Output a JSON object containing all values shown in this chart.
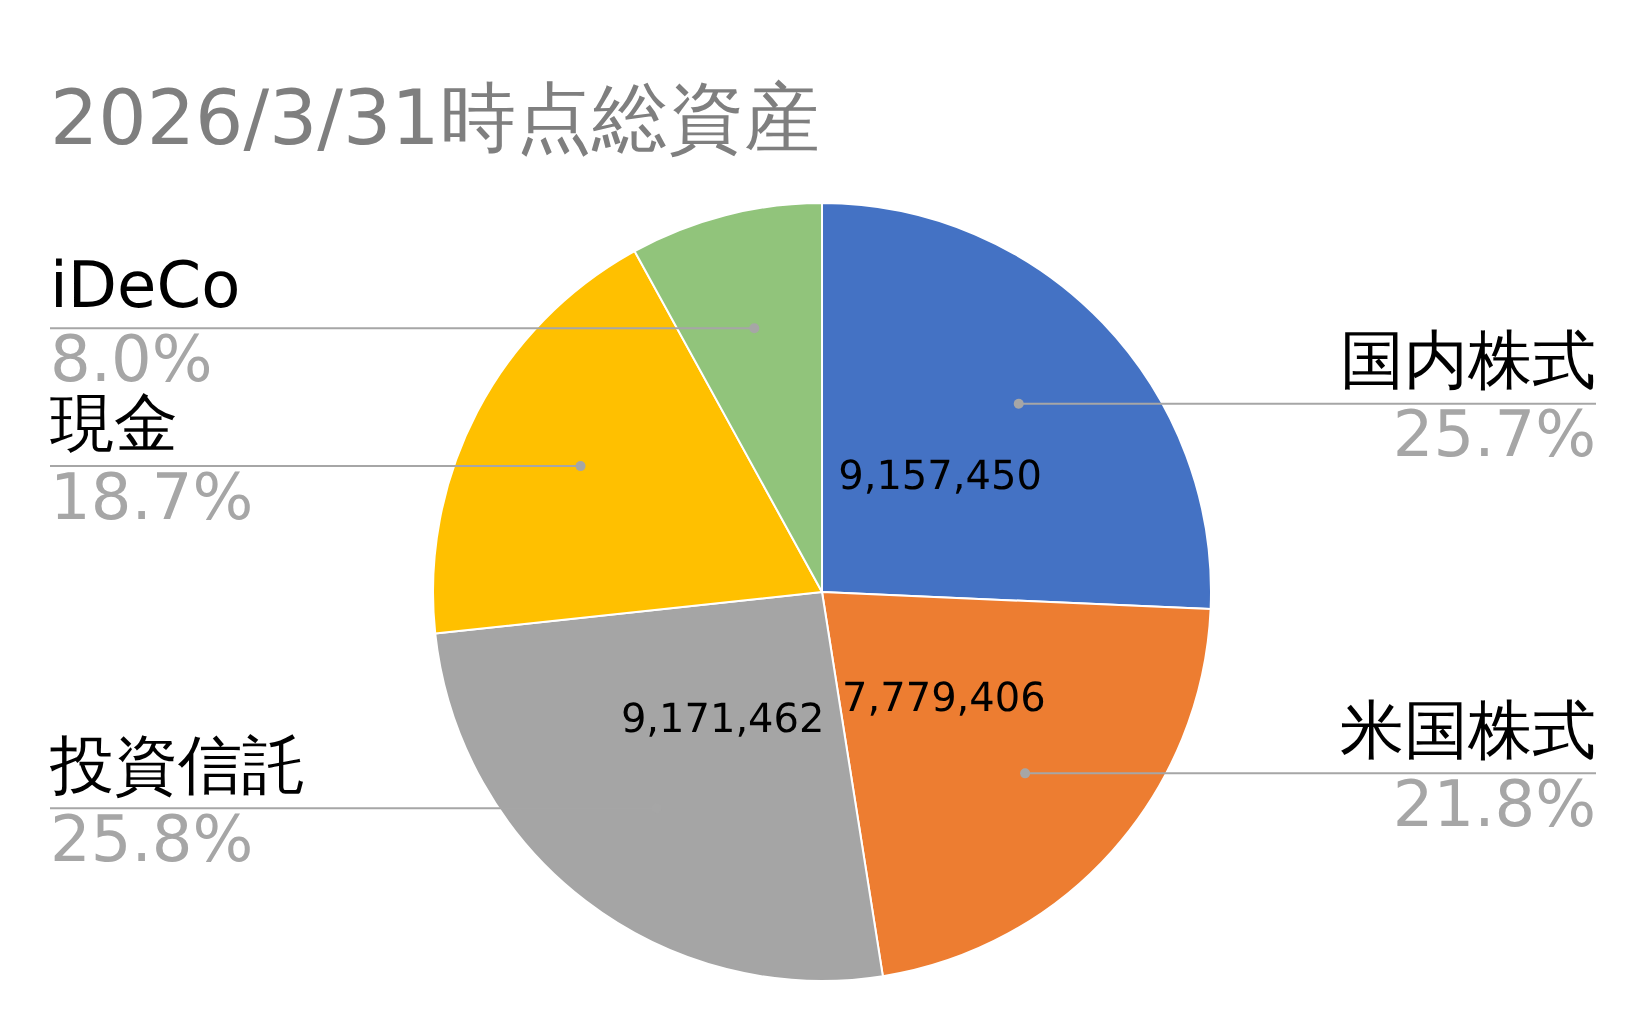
{
  "chart_data": {
    "type": "pie",
    "title": "2026/3/31時点総資産",
    "categories": [
      "国内株式",
      "米国株式",
      "投資信託",
      "現金",
      "iDeCo"
    ],
    "values": [
      25.7,
      21.8,
      25.8,
      18.7,
      8.0
    ],
    "colors": [
      "#4472c4",
      "#ed7d31",
      "#a5a5a5",
      "#ffc000",
      "#91c47b"
    ],
    "value_labels": [
      "25.7%",
      "21.8%",
      "25.8%",
      "18.7%",
      "8.0%"
    ],
    "annotations": [
      {
        "text": "9,157,450",
        "x": "国内株式"
      },
      {
        "text": "7,779,406",
        "x": "米国株式"
      },
      {
        "text": "9,171,462",
        "x": "投資信託"
      }
    ],
    "legend": false
  }
}
